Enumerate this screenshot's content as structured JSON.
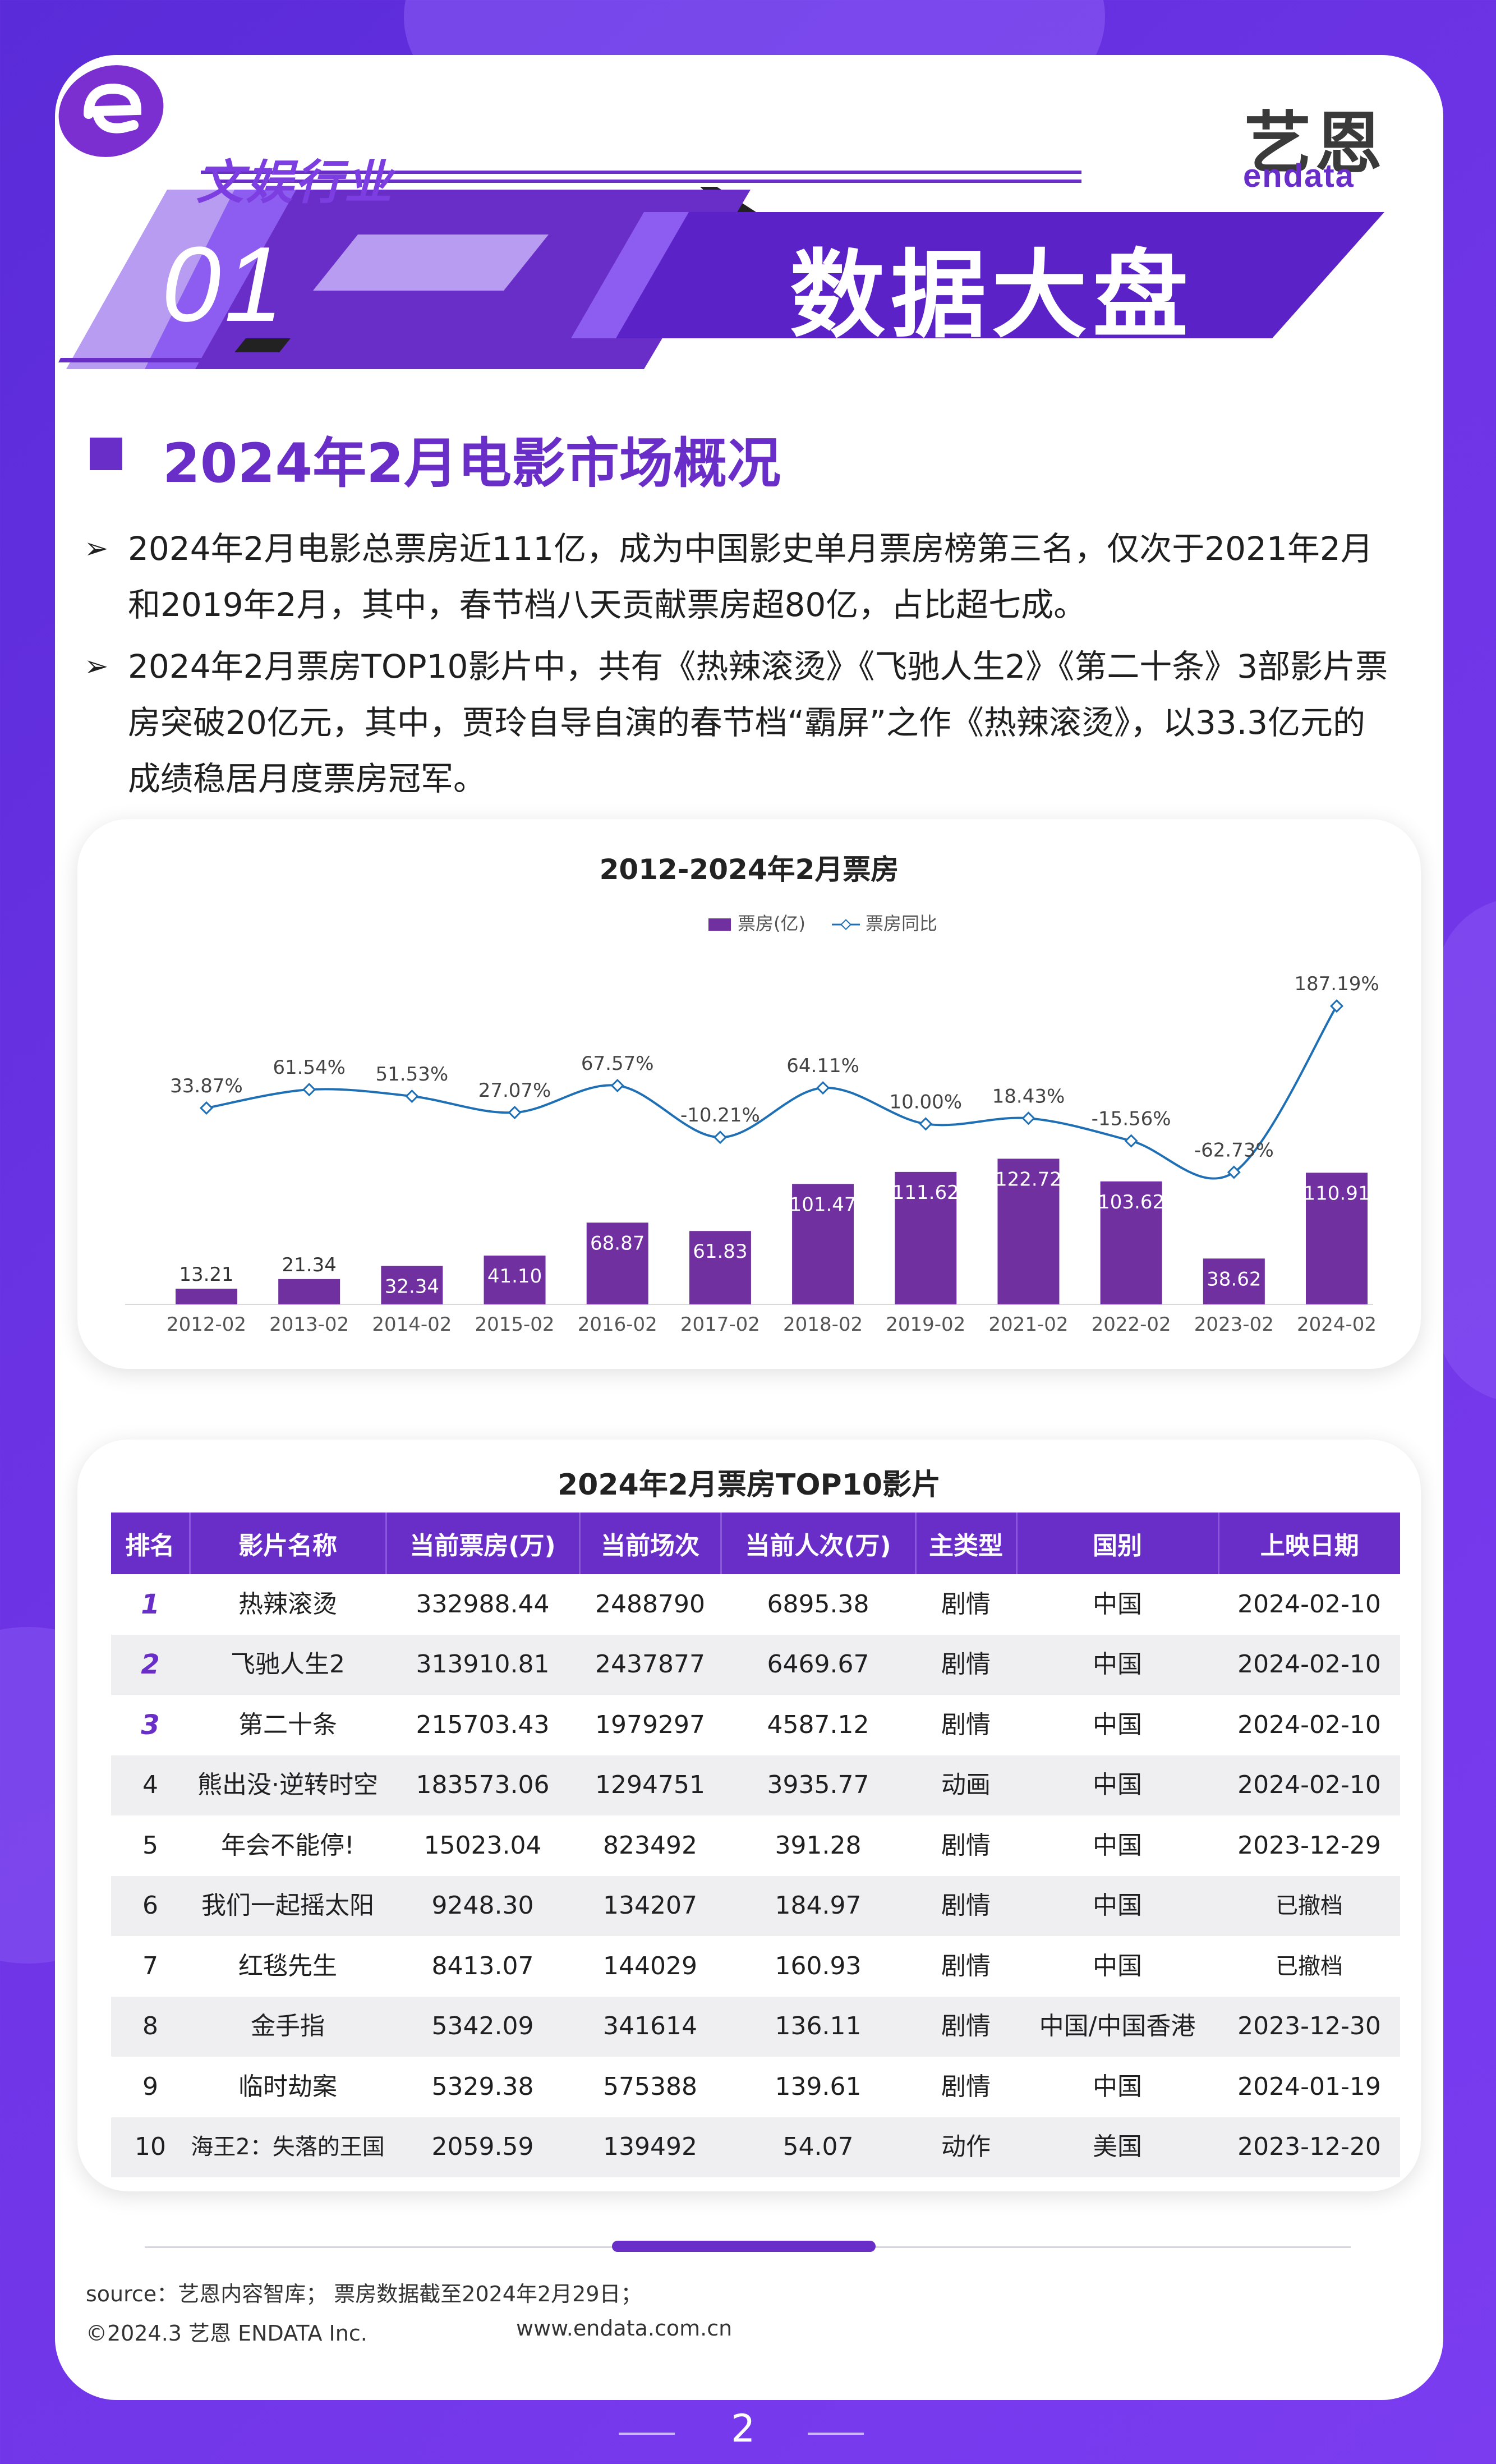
{
  "header": {
    "category": "文娱行业",
    "section_number": "01",
    "section_title": "数据大盘",
    "logo": {
      "cn": "艺恩",
      "en": "endata",
      "icon": "endata-logo-icon"
    }
  },
  "heading": "2024年2月电影市场概况",
  "paragraphs": [
    "2024年2月电影总票房近111亿，成为中国影史单月票房榜第三名，仅次于2021年2月和2019年2月，其中，春节档八天贡献票房超80亿，占比超七成。",
    "2024年2月票房TOP10影片中，共有《热辣滚烫》《飞驰人生2》《第二十条》3部影片票房突破20亿元，其中，贾玲自导自演的春节档“霸屏”之作《热辣滚烫》，以33.3亿元的成绩稳居月度票房冠军。"
  ],
  "chart_data": {
    "type": "bar",
    "title": "2012-2024年2月票房",
    "categories": [
      "2012-02",
      "2013-02",
      "2014-02",
      "2015-02",
      "2016-02",
      "2017-02",
      "2018-02",
      "2019-02",
      "2021-02",
      "2022-02",
      "2023-02",
      "2024-02"
    ],
    "series": [
      {
        "name": "票房(亿)",
        "type": "bar",
        "values": [
          13.21,
          21.34,
          32.34,
          41.1,
          68.87,
          61.83,
          101.47,
          111.62,
          122.72,
          103.62,
          38.62,
          110.91
        ],
        "labels": [
          "13.21",
          "21.34",
          "32.34",
          "41.10",
          "68.87",
          "61.83",
          "101.47",
          "111.62",
          "122.72",
          "103.62",
          "38.62",
          "110.91"
        ]
      },
      {
        "name": "票房同比",
        "type": "line",
        "values": [
          33.87,
          61.54,
          51.53,
          27.07,
          67.57,
          -10.21,
          64.11,
          10.0,
          18.43,
          -15.56,
          -62.73,
          187.19
        ],
        "labels": [
          "33.87%",
          "61.54%",
          "51.53%",
          "27.07%",
          "67.57%",
          "-10.21%",
          "64.11%",
          "10.00%",
          "18.43%",
          "-15.56%",
          "-62.73%",
          "187.19%"
        ]
      }
    ],
    "legend_position": "top-center",
    "grid": false,
    "colors": {
      "bar": "#7030a0",
      "line": "#1f6fb5",
      "bar_label_inside": "#ffffff",
      "bar_label_outside": "#333333"
    }
  },
  "table": {
    "title": "2024年2月票房TOP10影片",
    "headers": [
      "排名",
      "影片名称",
      "当前票房(万)",
      "当前场次",
      "当前人次(万)",
      "主类型",
      "国别",
      "上映日期"
    ],
    "rows": [
      [
        "1",
        "热辣滚烫",
        "332988.44",
        "2488790",
        "6895.38",
        "剧情",
        "中国",
        "2024-02-10"
      ],
      [
        "2",
        "飞驰人生2",
        "313910.81",
        "2437877",
        "6469.67",
        "剧情",
        "中国",
        "2024-02-10"
      ],
      [
        "3",
        "第二十条",
        "215703.43",
        "1979297",
        "4587.12",
        "剧情",
        "中国",
        "2024-02-10"
      ],
      [
        "4",
        "熊出没·逆转时空",
        "183573.06",
        "1294751",
        "3935.77",
        "动画",
        "中国",
        "2024-02-10"
      ],
      [
        "5",
        "年会不能停!",
        "15023.04",
        "823492",
        "391.28",
        "剧情",
        "中国",
        "2023-12-29"
      ],
      [
        "6",
        "我们一起摇太阳",
        "9248.30",
        "134207",
        "184.97",
        "剧情",
        "中国",
        "已撤档"
      ],
      [
        "7",
        "红毯先生",
        "8413.07",
        "144029",
        "160.93",
        "剧情",
        "中国",
        "已撤档"
      ],
      [
        "8",
        "金手指",
        "5342.09",
        "341614",
        "136.11",
        "剧情",
        "中国/中国香港",
        "2023-12-30"
      ],
      [
        "9",
        "临时劫案",
        "5329.38",
        "575388",
        "139.61",
        "剧情",
        "中国",
        "2024-01-19"
      ],
      [
        "10",
        "海王2：失落的王国",
        "2059.59",
        "139492",
        "54.07",
        "动作",
        "美国",
        "2023-12-20"
      ]
    ]
  },
  "footer": {
    "source": "source：艺恩内容智库；  票房数据截至2024年2月29日；",
    "copyright": "©2024.3 艺恩 ENDATA Inc.",
    "url": "www.endata.com.cn",
    "page_number": "2"
  }
}
